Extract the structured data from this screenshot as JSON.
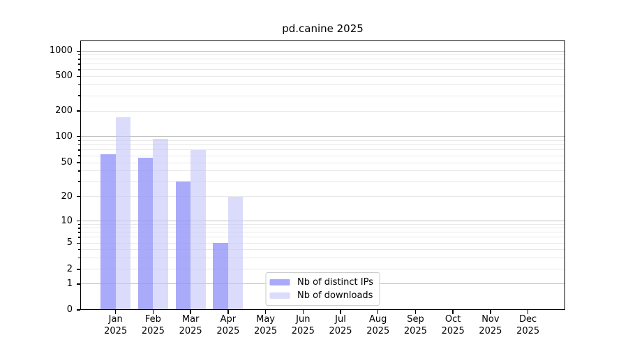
{
  "chart_data": {
    "type": "bar",
    "title": "pd.canine 2025",
    "categories": [
      "Jan 2025",
      "Feb 2025",
      "Mar 2025",
      "Apr 2025",
      "May 2025",
      "Jun 2025",
      "Jul 2025",
      "Aug 2025",
      "Sep 2025",
      "Oct 2025",
      "Nov 2025",
      "Dec 2025"
    ],
    "series": [
      {
        "name": "Nb of distinct IPs",
        "color": "rgba(149,149,249,0.8)",
        "values": [
          62,
          57,
          30,
          5,
          0,
          0,
          0,
          0,
          0,
          0,
          0,
          0
        ]
      },
      {
        "name": "Nb of downloads",
        "color": "rgba(195,195,248,0.6)",
        "values": [
          170,
          94,
          70,
          20,
          0,
          0,
          0,
          0,
          0,
          0,
          0,
          0
        ]
      }
    ],
    "xlabel": "",
    "ylabel": "",
    "yscale": "symlog",
    "ylim": [
      0,
      1300
    ],
    "yticks": [
      0,
      1,
      2,
      5,
      10,
      20,
      50,
      100,
      200,
      500,
      1000
    ],
    "grid": true,
    "legend_position": "lower center",
    "axis_color": "#000000",
    "major_grid_color": "#c3c3c3",
    "minor_grid_color": "#e8e8e8",
    "background_color": "#ffffff"
  }
}
